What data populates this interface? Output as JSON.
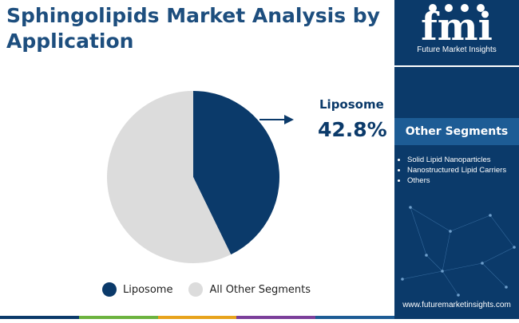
{
  "title": "Sphingolipids Market Analysis by Application",
  "brand": {
    "logo_text": "fmi",
    "name": "Future Market Insights",
    "url": "www.futuremarketinsights.com"
  },
  "other_segments": {
    "heading": "Other Segments",
    "items": [
      "Solid Lipid Nanoparticles",
      "Nanostructured Lipid Carriers",
      "Others"
    ]
  },
  "callout": {
    "label": "Liposome",
    "value": "42.8%"
  },
  "chart_data": {
    "type": "pie",
    "categories": [
      "Liposome",
      "All Other Segments"
    ],
    "values": [
      42.8,
      57.2
    ],
    "colors": [
      "#0b3a6a",
      "#dcdcdc"
    ],
    "title": "Sphingolipids Market Analysis by Application",
    "legend_position": "bottom"
  },
  "colors": {
    "title": "#1d4e7e",
    "sidebar": "#0b3a6a",
    "segments_box": "#1d5c95",
    "bottom_bar": [
      "#0b3a6a",
      "#6cb33f",
      "#e7a31c",
      "#7b3f9a",
      "#1d5c95"
    ]
  }
}
